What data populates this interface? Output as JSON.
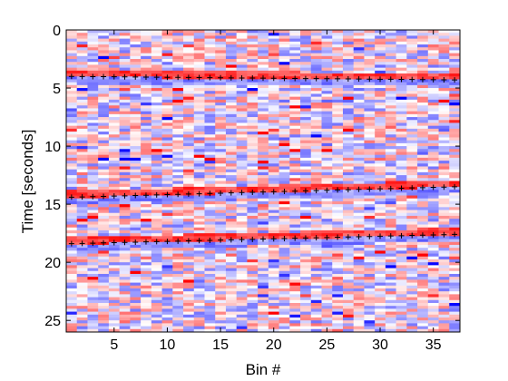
{
  "chart_data": {
    "type": "heatmap",
    "xlabel": "Bin #",
    "ylabel": "Time [seconds]",
    "xlim": [
      0.5,
      37.5
    ],
    "ylim": [
      0,
      26
    ],
    "y_reversed": true,
    "x_ticks": [
      5,
      10,
      15,
      20,
      25,
      30,
      35
    ],
    "y_ticks": [
      0,
      5,
      10,
      15,
      20,
      25
    ],
    "colormap": {
      "low": "#0000ff",
      "mid": "#ffffff",
      "high": "#ff0000"
    },
    "n_bins": 37,
    "bands": [
      {
        "start_time": 4.0,
        "end_time": 4.3,
        "marker": "+",
        "marker_color": "#000000"
      },
      {
        "start_time": 14.4,
        "end_time": 13.5,
        "marker": "+",
        "marker_color": "#000000"
      },
      {
        "start_time": 18.4,
        "end_time": 17.6,
        "marker": "+",
        "marker_color": "#000000"
      }
    ]
  }
}
